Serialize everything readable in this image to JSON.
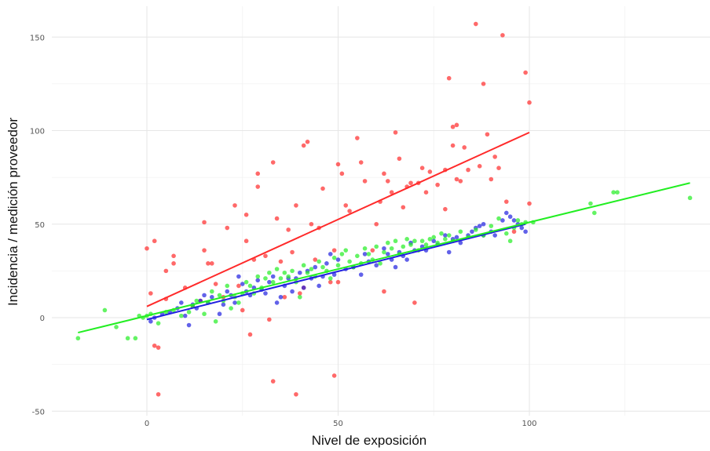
{
  "chart_data": {
    "type": "scatter",
    "title": "",
    "xlabel": "Nivel de exposición",
    "ylabel": "Incidencia / medición proveedor",
    "xlim": [
      -24,
      148
    ],
    "ylim": [
      -50,
      160
    ],
    "x_ticks": [
      0,
      50,
      100
    ],
    "y_ticks": [
      -50,
      0,
      50,
      100,
      150
    ],
    "x_tick_labels": [
      "0",
      "50",
      "100"
    ],
    "y_tick_labels": [
      "-50",
      "0",
      "50",
      "100",
      "150"
    ],
    "grid": true,
    "legend": "none",
    "series": [
      {
        "color": "#ff2a2a",
        "points": [
          [
            0,
            37
          ],
          [
            1,
            13
          ],
          [
            2,
            41
          ],
          [
            2,
            -15
          ],
          [
            3,
            -16
          ],
          [
            3,
            -41
          ],
          [
            5,
            10
          ],
          [
            5,
            25
          ],
          [
            7,
            33
          ],
          [
            7,
            29
          ],
          [
            10,
            16
          ],
          [
            12,
            6
          ],
          [
            14,
            9
          ],
          [
            15,
            51
          ],
          [
            15,
            36
          ],
          [
            16,
            29
          ],
          [
            17,
            29
          ],
          [
            18,
            18
          ],
          [
            20,
            11
          ],
          [
            21,
            48
          ],
          [
            23,
            60
          ],
          [
            24,
            17
          ],
          [
            25,
            4
          ],
          [
            26,
            55
          ],
          [
            26,
            41
          ],
          [
            27,
            -9
          ],
          [
            28,
            31
          ],
          [
            29,
            70
          ],
          [
            29,
            77
          ],
          [
            31,
            33
          ],
          [
            32,
            -1
          ],
          [
            33,
            -34
          ],
          [
            33,
            83
          ],
          [
            34,
            53
          ],
          [
            35,
            30
          ],
          [
            36,
            11
          ],
          [
            37,
            47
          ],
          [
            38,
            35
          ],
          [
            39,
            60
          ],
          [
            39,
            -41
          ],
          [
            40,
            13
          ],
          [
            41,
            16
          ],
          [
            41,
            92
          ],
          [
            42,
            94
          ],
          [
            43,
            50
          ],
          [
            44,
            31
          ],
          [
            45,
            48
          ],
          [
            46,
            69
          ],
          [
            48,
            19
          ],
          [
            49,
            36
          ],
          [
            49,
            -31
          ],
          [
            50,
            82
          ],
          [
            50,
            19
          ],
          [
            51,
            77
          ],
          [
            52,
            60
          ],
          [
            53,
            57
          ],
          [
            55,
            96
          ],
          [
            56,
            83
          ],
          [
            57,
            73
          ],
          [
            59,
            36
          ],
          [
            60,
            50
          ],
          [
            61,
            62
          ],
          [
            62,
            77
          ],
          [
            62,
            14
          ],
          [
            63,
            73
          ],
          [
            64,
            67
          ],
          [
            65,
            99
          ],
          [
            66,
            85
          ],
          [
            67,
            59
          ],
          [
            68,
            70
          ],
          [
            69,
            72
          ],
          [
            70,
            8
          ],
          [
            71,
            72
          ],
          [
            72,
            80
          ],
          [
            73,
            67
          ],
          [
            74,
            78
          ],
          [
            76,
            71
          ],
          [
            78,
            79
          ],
          [
            78,
            58
          ],
          [
            79,
            128
          ],
          [
            80,
            92
          ],
          [
            80,
            102
          ],
          [
            81,
            103
          ],
          [
            81,
            74
          ],
          [
            82,
            73
          ],
          [
            83,
            91
          ],
          [
            84,
            79
          ],
          [
            86,
            157
          ],
          [
            87,
            81
          ],
          [
            88,
            125
          ],
          [
            89,
            98
          ],
          [
            90,
            74
          ],
          [
            91,
            86
          ],
          [
            92,
            80
          ],
          [
            93,
            151
          ],
          [
            94,
            62
          ],
          [
            96,
            46
          ],
          [
            99,
            131
          ],
          [
            100,
            115
          ],
          [
            100,
            61
          ]
        ],
        "fit": [
          [
            0,
            6
          ],
          [
            100,
            99
          ]
        ]
      },
      {
        "color": "#2020e0",
        "points": [
          [
            1,
            -2
          ],
          [
            2,
            0
          ],
          [
            4,
            2
          ],
          [
            6,
            3
          ],
          [
            8,
            5
          ],
          [
            9,
            8
          ],
          [
            10,
            1
          ],
          [
            11,
            -4
          ],
          [
            12,
            7
          ],
          [
            13,
            5
          ],
          [
            14,
            9
          ],
          [
            15,
            12
          ],
          [
            16,
            8
          ],
          [
            17,
            11
          ],
          [
            19,
            2
          ],
          [
            20,
            7
          ],
          [
            21,
            14
          ],
          [
            22,
            12
          ],
          [
            23,
            8
          ],
          [
            24,
            22
          ],
          [
            25,
            18
          ],
          [
            26,
            14
          ],
          [
            27,
            12
          ],
          [
            28,
            16
          ],
          [
            29,
            20
          ],
          [
            30,
            15
          ],
          [
            31,
            13
          ],
          [
            32,
            19
          ],
          [
            33,
            22
          ],
          [
            34,
            8
          ],
          [
            35,
            11
          ],
          [
            36,
            17
          ],
          [
            37,
            21
          ],
          [
            38,
            14
          ],
          [
            39,
            21
          ],
          [
            40,
            24
          ],
          [
            41,
            16
          ],
          [
            42,
            25
          ],
          [
            43,
            21
          ],
          [
            44,
            27
          ],
          [
            45,
            17
          ],
          [
            46,
            22
          ],
          [
            47,
            29
          ],
          [
            48,
            34
          ],
          [
            49,
            23
          ],
          [
            50,
            31
          ],
          [
            52,
            26
          ],
          [
            54,
            27
          ],
          [
            56,
            23
          ],
          [
            57,
            34
          ],
          [
            58,
            30
          ],
          [
            60,
            28
          ],
          [
            62,
            37
          ],
          [
            63,
            34
          ],
          [
            64,
            31
          ],
          [
            65,
            27
          ],
          [
            66,
            35
          ],
          [
            67,
            33
          ],
          [
            68,
            31
          ],
          [
            69,
            40
          ],
          [
            70,
            36
          ],
          [
            72,
            38
          ],
          [
            73,
            36
          ],
          [
            75,
            41
          ],
          [
            76,
            39
          ],
          [
            78,
            44
          ],
          [
            79,
            35
          ],
          [
            80,
            42
          ],
          [
            81,
            43
          ],
          [
            82,
            40
          ],
          [
            84,
            44
          ],
          [
            85,
            46
          ],
          [
            86,
            48
          ],
          [
            87,
            49
          ],
          [
            88,
            50
          ],
          [
            88,
            44
          ],
          [
            90,
            46
          ],
          [
            91,
            44
          ],
          [
            93,
            52
          ],
          [
            94,
            56
          ],
          [
            95,
            54
          ],
          [
            96,
            52
          ],
          [
            97,
            50
          ],
          [
            98,
            48
          ],
          [
            99,
            46
          ]
        ],
        "fit": [
          [
            0,
            -1
          ],
          [
            99,
            50
          ]
        ]
      },
      {
        "color": "#22ee22",
        "points": [
          [
            -18,
            -11
          ],
          [
            -11,
            4
          ],
          [
            -8,
            -5
          ],
          [
            -5,
            -11
          ],
          [
            -3,
            -11
          ],
          [
            -2,
            1
          ],
          [
            -1,
            0
          ],
          [
            0,
            1
          ],
          [
            1,
            2
          ],
          [
            3,
            -3
          ],
          [
            5,
            3
          ],
          [
            7,
            4
          ],
          [
            9,
            1
          ],
          [
            11,
            3
          ],
          [
            12,
            6
          ],
          [
            13,
            9
          ],
          [
            15,
            2
          ],
          [
            16,
            8
          ],
          [
            17,
            14
          ],
          [
            18,
            -2
          ],
          [
            19,
            12
          ],
          [
            20,
            9
          ],
          [
            21,
            17
          ],
          [
            22,
            5
          ],
          [
            23,
            11
          ],
          [
            24,
            8
          ],
          [
            25,
            13
          ],
          [
            26,
            19
          ],
          [
            27,
            17
          ],
          [
            28,
            13
          ],
          [
            29,
            22
          ],
          [
            30,
            16
          ],
          [
            31,
            21
          ],
          [
            32,
            24
          ],
          [
            33,
            19
          ],
          [
            34,
            26
          ],
          [
            35,
            21
          ],
          [
            36,
            24
          ],
          [
            37,
            22
          ],
          [
            38,
            25
          ],
          [
            39,
            19
          ],
          [
            40,
            11
          ],
          [
            41,
            28
          ],
          [
            42,
            24
          ],
          [
            43,
            26
          ],
          [
            44,
            22
          ],
          [
            45,
            30
          ],
          [
            46,
            27
          ],
          [
            47,
            25
          ],
          [
            48,
            21
          ],
          [
            49,
            32
          ],
          [
            50,
            28
          ],
          [
            51,
            34
          ],
          [
            52,
            36
          ],
          [
            53,
            30
          ],
          [
            54,
            27
          ],
          [
            55,
            33
          ],
          [
            56,
            29
          ],
          [
            57,
            37
          ],
          [
            58,
            34
          ],
          [
            59,
            31
          ],
          [
            60,
            38
          ],
          [
            61,
            29
          ],
          [
            62,
            35
          ],
          [
            63,
            40
          ],
          [
            64,
            37
          ],
          [
            65,
            41
          ],
          [
            66,
            34
          ],
          [
            67,
            38
          ],
          [
            68,
            42
          ],
          [
            69,
            39
          ],
          [
            70,
            41
          ],
          [
            71,
            36
          ],
          [
            72,
            41
          ],
          [
            73,
            39
          ],
          [
            74,
            42
          ],
          [
            75,
            43
          ],
          [
            76,
            40
          ],
          [
            77,
            45
          ],
          [
            78,
            42
          ],
          [
            79,
            44
          ],
          [
            80,
            41
          ],
          [
            82,
            46
          ],
          [
            84,
            43
          ],
          [
            86,
            47
          ],
          [
            88,
            44
          ],
          [
            90,
            49
          ],
          [
            92,
            53
          ],
          [
            94,
            45
          ],
          [
            95,
            41
          ],
          [
            96,
            48
          ],
          [
            97,
            52
          ],
          [
            98,
            50
          ],
          [
            99,
            51
          ],
          [
            101,
            51
          ],
          [
            116,
            61
          ],
          [
            117,
            56
          ],
          [
            122,
            67
          ],
          [
            123,
            67
          ],
          [
            142,
            64
          ]
        ],
        "fit": [
          [
            -18,
            -8
          ],
          [
            142,
            72
          ]
        ]
      }
    ]
  }
}
